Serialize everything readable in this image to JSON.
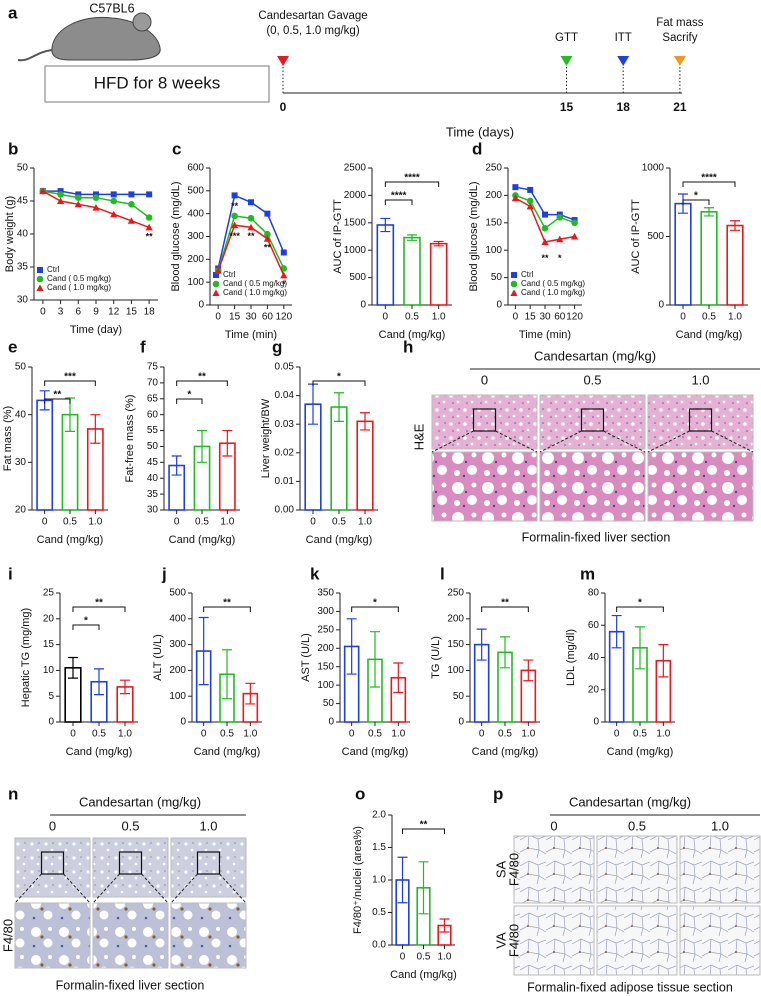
{
  "panel_labels": [
    "a",
    "b",
    "c",
    "d",
    "e",
    "f",
    "g",
    "h",
    "i",
    "j",
    "k",
    "l",
    "m",
    "n",
    "o",
    "p"
  ],
  "timeline": {
    "strain": "C57BL6",
    "diet": "HFD for 8 weeks",
    "axis_label": "Time (days)",
    "events": [
      {
        "day": 0,
        "lines": [
          "Candesartan Gavage",
          "(0, 0.5, 1.0 mg/kg)"
        ],
        "color": "#e8191c"
      },
      {
        "day": 15,
        "lines": [
          "GTT"
        ],
        "color": "#22bb22"
      },
      {
        "day": 18,
        "lines": [
          "ITT"
        ],
        "color": "#1f3fe0"
      },
      {
        "day": 21,
        "lines": [
          "Fat mass",
          "Sacrify"
        ],
        "color": "#f5961e"
      }
    ]
  },
  "histology": [
    {
      "header": "Candesartan (mg/kg)",
      "columns": [
        "0",
        "0.5",
        "1.0"
      ],
      "row_labels": [
        [
          "H&E"
        ]
      ],
      "caption": "Formalin-fixed liver section"
    },
    {
      "header": "Candesartan (mg/kg)",
      "columns": [
        "0",
        "0.5",
        "1.0"
      ],
      "row_labels": [
        [
          "F4/80"
        ]
      ],
      "caption": "Formalin-fixed liver section"
    },
    {
      "header": "Candesartan (mg/kg)",
      "columns": [
        "0",
        "0.5",
        "1.0"
      ],
      "row_labels": [
        [
          "SA",
          "F4/80"
        ],
        [
          "VA",
          "F4/80"
        ]
      ],
      "caption": "Formalin-fixed adipose tissue section"
    }
  ],
  "chart_data": [
    {
      "type": "line",
      "x_label": "Time (day)",
      "y_label": "Body weight (g)",
      "x": [
        0,
        3,
        6,
        9,
        12,
        15,
        18
      ],
      "xlim": [
        -1.5,
        19.5
      ],
      "xticks": [
        0,
        3,
        6,
        9,
        12,
        15,
        18
      ],
      "ylim": [
        30,
        50
      ],
      "yticks": [
        30,
        35,
        40,
        45,
        50
      ],
      "series": [
        {
          "name": "Ctrl",
          "color": "#1f3fe0",
          "marker": "square",
          "values": [
            46.5,
            46.5,
            46,
            46,
            46,
            46,
            46
          ]
        },
        {
          "name": "Cand ( 0.5 mg/kg)",
          "color": "#22bb22",
          "marker": "circle",
          "values": [
            46.5,
            46,
            45.5,
            45.5,
            45,
            44.5,
            42.5
          ]
        },
        {
          "name": "Cand ( 1.0 mg/kg)",
          "color": "#e8191c",
          "marker": "triangle",
          "values": [
            46.5,
            45,
            44.5,
            44,
            43,
            42,
            41
          ]
        }
      ],
      "annotations": [
        {
          "text": "**",
          "x": 18,
          "y": 39.5
        }
      ]
    },
    {
      "type": "line",
      "x_label": "Time (min)",
      "y_label": "Blood glucose (mg/dL)",
      "categories": [
        "0",
        "15",
        "30",
        "60",
        "120"
      ],
      "ylim": [
        0,
        600
      ],
      "yticks": [
        0,
        100,
        200,
        300,
        400,
        500,
        600
      ],
      "series": [
        {
          "name": "Ctrl",
          "color": "#1f3fe0",
          "marker": "square",
          "values": [
            160,
            480,
            450,
            400,
            230
          ]
        },
        {
          "name": "Cand ( 0.5 mg/kg)",
          "color": "#22bb22",
          "marker": "circle",
          "values": [
            150,
            390,
            380,
            310,
            160
          ]
        },
        {
          "name": "Cand ( 1.0 mg/kg)",
          "color": "#e8191c",
          "marker": "triangle",
          "values": [
            150,
            350,
            340,
            290,
            130
          ]
        }
      ],
      "annotations": [
        {
          "text": "**",
          "x": 1,
          "y": 430
        },
        {
          "text": "***",
          "x": 1,
          "y": 300
        },
        {
          "text": "**",
          "x": 2,
          "y": 300
        },
        {
          "text": "**",
          "x": 3,
          "y": 250
        },
        {
          "text": "*",
          "x": 4,
          "y": 90
        }
      ]
    },
    {
      "type": "bar",
      "x_label": "Cand (mg/kg)",
      "y_label": "AUC of IP-GTT",
      "categories": [
        "0",
        "0.5",
        "1.0"
      ],
      "colors": [
        "#1f3fe0",
        "#22bb22",
        "#e8191c"
      ],
      "values": [
        1460,
        1230,
        1120
      ],
      "errors": [
        120,
        50,
        40
      ],
      "ylim": [
        0,
        2500
      ],
      "yticks": [
        0,
        500,
        1000,
        1500,
        2000,
        2500
      ],
      "brackets": [
        {
          "between": [
            0,
            1
          ],
          "label": "****"
        },
        {
          "between": [
            0,
            2
          ],
          "label": "****"
        }
      ]
    },
    {
      "type": "line",
      "x_label": "Time (min)",
      "y_label": "Blood glucose (mg/dL)",
      "categories": [
        "0",
        "15",
        "30",
        "60",
        "120"
      ],
      "ylim": [
        0,
        250
      ],
      "yticks": [
        0,
        50,
        100,
        150,
        200,
        250
      ],
      "series": [
        {
          "name": "Ctrl",
          "color": "#1f3fe0",
          "marker": "square",
          "values": [
            215,
            210,
            165,
            165,
            155
          ]
        },
        {
          "name": "Cand ( 0.5 mg/kg)",
          "color": "#22bb22",
          "marker": "circle",
          "values": [
            200,
            190,
            140,
            160,
            150
          ]
        },
        {
          "name": "Cand ( 1.0 mg/kg)",
          "color": "#e8191c",
          "marker": "triangle",
          "values": [
            195,
            180,
            115,
            120,
            125
          ]
        }
      ],
      "annotations": [
        {
          "text": "**",
          "x": 2,
          "y": 85
        },
        {
          "text": "*",
          "x": 3,
          "y": 85
        }
      ]
    },
    {
      "type": "bar",
      "x_label": "Cand (mg/kg)",
      "y_label": "AUC of IP-GTT",
      "categories": [
        "0",
        "0.5",
        "1.0"
      ],
      "colors": [
        "#1f3fe0",
        "#22bb22",
        "#e8191c"
      ],
      "values": [
        740,
        680,
        580
      ],
      "errors": [
        70,
        30,
        35
      ],
      "ylim": [
        0,
        1000
      ],
      "yticks": [
        0,
        500,
        1000
      ],
      "brackets": [
        {
          "between": [
            0,
            1
          ],
          "label": "*"
        },
        {
          "between": [
            0,
            2
          ],
          "label": "****"
        }
      ]
    },
    {
      "type": "bar",
      "x_label": "Cand (mg/kg)",
      "y_label": "Fat mass (%)",
      "categories": [
        "0",
        "0.5",
        "1.0"
      ],
      "colors": [
        "#1f3fe0",
        "#22bb22",
        "#e8191c"
      ],
      "values": [
        43,
        40,
        37
      ],
      "errors": [
        2,
        3.5,
        3
      ],
      "ylim": [
        20,
        50
      ],
      "yticks": [
        20,
        30,
        40,
        50
      ],
      "brackets": [
        {
          "between": [
            0,
            1
          ],
          "label": "**"
        },
        {
          "between": [
            0,
            2
          ],
          "label": "***"
        }
      ]
    },
    {
      "type": "bar",
      "x_label": "Cand (mg/kg)",
      "y_label": "Fat-free mass (%)",
      "categories": [
        "0",
        "0.5",
        "1.0"
      ],
      "colors": [
        "#1f3fe0",
        "#22bb22",
        "#e8191c"
      ],
      "values": [
        44,
        50,
        51
      ],
      "errors": [
        3,
        5,
        4
      ],
      "ylim": [
        30,
        75
      ],
      "yticks": [
        30,
        35,
        40,
        45,
        50,
        55,
        60,
        65,
        70,
        75
      ],
      "brackets": [
        {
          "between": [
            0,
            1
          ],
          "label": "*"
        },
        {
          "between": [
            0,
            2
          ],
          "label": "**"
        }
      ]
    },
    {
      "type": "bar",
      "x_label": "Cand (mg/kg)",
      "y_label": "Liver weight/BW",
      "categories": [
        "0",
        "0.5",
        "1.0"
      ],
      "colors": [
        "#1f3fe0",
        "#22bb22",
        "#e8191c"
      ],
      "values": [
        0.037,
        0.036,
        0.031
      ],
      "errors": [
        0.007,
        0.005,
        0.003
      ],
      "ylim": [
        0,
        0.05
      ],
      "yticks": [
        {
          "value": 0,
          "label": "0.00"
        },
        0.01,
        0.02,
        0.03,
        0.04,
        0.05
      ],
      "brackets": [
        {
          "between": [
            0,
            2
          ],
          "label": "*"
        }
      ]
    },
    {
      "type": "bar",
      "x_label": "Cand (mg/kg)",
      "y_label": "Hepatic TG (mg/mg)",
      "categories": [
        "0",
        "0.5",
        "1.0"
      ],
      "colors": [
        "#000000",
        "#1f3fe0",
        "#e8191c"
      ],
      "values": [
        10.5,
        7.8,
        6.8
      ],
      "errors": [
        2,
        2.5,
        1.3
      ],
      "ylim": [
        0,
        25
      ],
      "yticks": [
        0,
        5,
        10,
        15,
        20,
        25
      ],
      "brackets": [
        {
          "between": [
            0,
            1
          ],
          "label": "*"
        },
        {
          "between": [
            0,
            2
          ],
          "label": "**"
        }
      ]
    },
    {
      "type": "bar",
      "x_label": "Cand (mg/kg)",
      "y_label": "ALT (U/L)",
      "categories": [
        "0",
        "0.5",
        "1.0"
      ],
      "colors": [
        "#1f3fe0",
        "#22bb22",
        "#e8191c"
      ],
      "values": [
        275,
        185,
        110
      ],
      "errors": [
        130,
        95,
        40
      ],
      "ylim": [
        0,
        500
      ],
      "yticks": [
        0,
        100,
        200,
        300,
        400,
        500
      ],
      "brackets": [
        {
          "between": [
            0,
            2
          ],
          "label": "**"
        }
      ]
    },
    {
      "type": "bar",
      "x_label": "Cand (mg/kg)",
      "y_label": "AST (U/L)",
      "categories": [
        "0",
        "0.5",
        "1.0"
      ],
      "colors": [
        "#1f3fe0",
        "#22bb22",
        "#e8191c"
      ],
      "values": [
        205,
        170,
        120
      ],
      "errors": [
        75,
        75,
        40
      ],
      "ylim": [
        0,
        350
      ],
      "yticks": [
        0,
        50,
        100,
        150,
        200,
        250,
        300,
        350
      ],
      "brackets": [
        {
          "between": [
            0,
            2
          ],
          "label": "*"
        }
      ]
    },
    {
      "type": "bar",
      "x_label": "Cand (mg/kg)",
      "y_label": "TG (U/L)",
      "categories": [
        "0",
        "0.5",
        "1.0"
      ],
      "colors": [
        "#1f3fe0",
        "#22bb22",
        "#e8191c"
      ],
      "values": [
        150,
        135,
        100
      ],
      "errors": [
        30,
        30,
        20
      ],
      "ylim": [
        0,
        250
      ],
      "yticks": [
        0,
        50,
        100,
        150,
        200,
        250
      ],
      "brackets": [
        {
          "between": [
            0,
            2
          ],
          "label": "**"
        }
      ]
    },
    {
      "type": "bar",
      "x_label": "Cand (mg/kg)",
      "y_label": "LDL (mg/dl)",
      "categories": [
        "0",
        "0.5",
        "1.0"
      ],
      "colors": [
        "#1f3fe0",
        "#22bb22",
        "#e8191c"
      ],
      "values": [
        56,
        46,
        38
      ],
      "errors": [
        10,
        13,
        10
      ],
      "ylim": [
        0,
        80
      ],
      "yticks": [
        0,
        20,
        40,
        60,
        80
      ],
      "brackets": [
        {
          "between": [
            0,
            2
          ],
          "label": "*"
        }
      ]
    },
    {
      "type": "bar",
      "x_label": "Cand (mg/kg)",
      "y_label": "F4/80⁺/nuclei (area%)",
      "categories": [
        "0",
        "0.5",
        "1.0"
      ],
      "colors": [
        "#1f3fe0",
        "#22bb22",
        "#e8191c"
      ],
      "values": [
        1.0,
        0.88,
        0.3
      ],
      "errors": [
        0.35,
        0.4,
        0.1
      ],
      "ylim": [
        0,
        2
      ],
      "yticks": [
        {
          "value": 0,
          "label": "0.0"
        },
        0.5,
        {
          "value": 1,
          "label": "1.0"
        },
        1.5,
        {
          "value": 2,
          "label": "2.0"
        }
      ],
      "brackets": [
        {
          "between": [
            0,
            2
          ],
          "label": "**"
        }
      ]
    }
  ]
}
